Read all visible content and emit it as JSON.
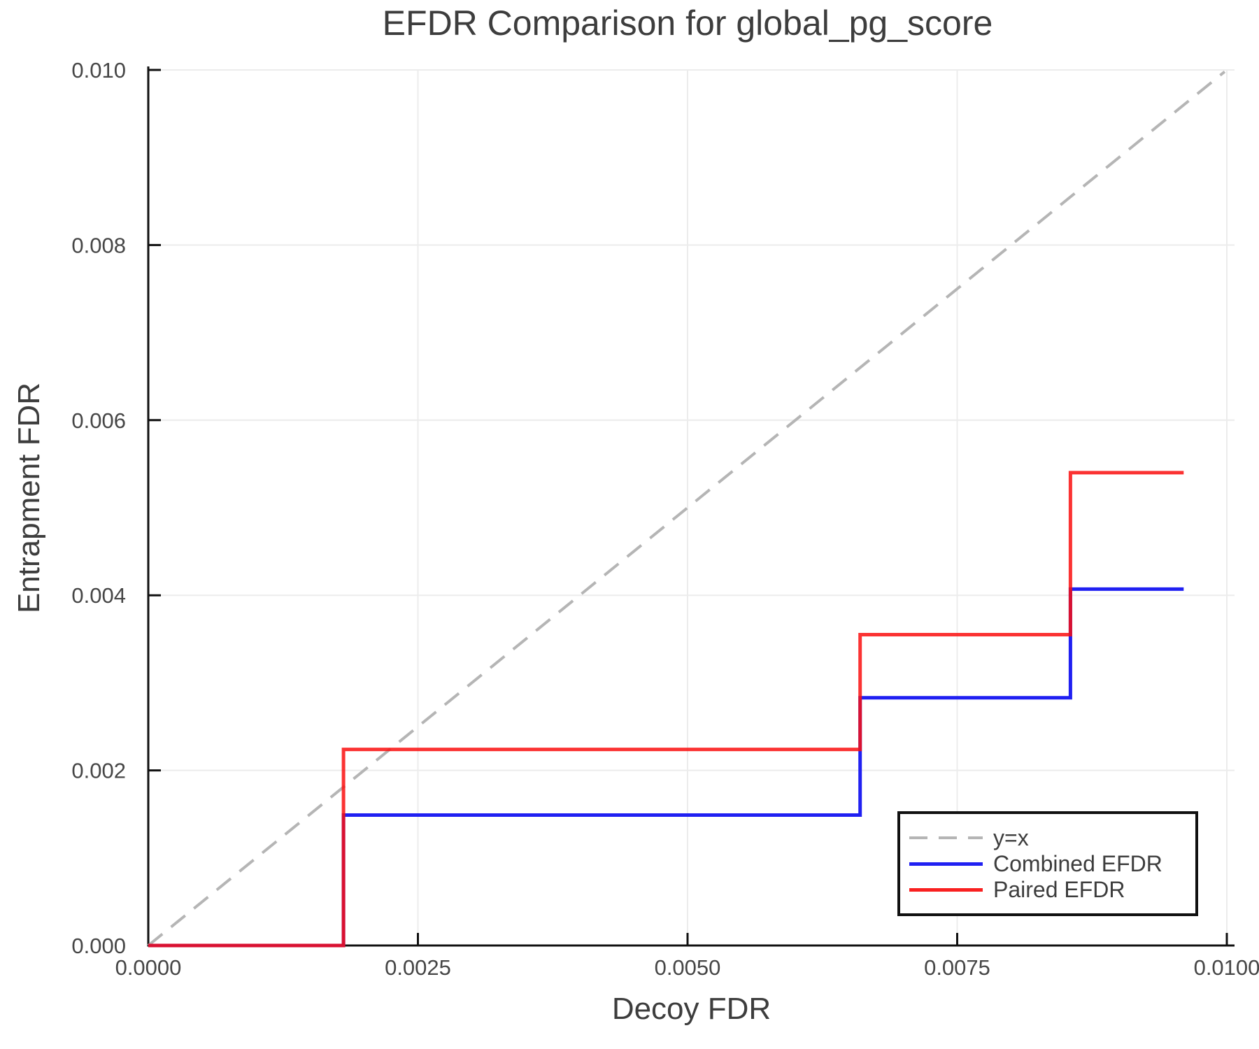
{
  "chart_data": {
    "type": "line",
    "title": "EFDR Comparison for global_pg_score",
    "xlabel": "Decoy FDR",
    "ylabel": "Entrapment FDR",
    "xlim": [
      0.0,
      0.01
    ],
    "ylim": [
      0.0,
      0.01
    ],
    "grid": true,
    "legend_position": "lower right",
    "x_ticks": [
      0.0,
      0.0025,
      0.005,
      0.0075,
      0.01
    ],
    "x_tick_labels": [
      "0.0000",
      "0.0025",
      "0.0050",
      "0.0075",
      "0.0100"
    ],
    "y_ticks": [
      0.0,
      0.002,
      0.004,
      0.006,
      0.008,
      0.01
    ],
    "y_tick_labels": [
      "0.000",
      "0.002",
      "0.004",
      "0.006",
      "0.008",
      "0.010"
    ],
    "series": [
      {
        "name": "y=x",
        "style": "dashed",
        "color": "#b5b5b5",
        "width": 4,
        "opacity": 1,
        "points": [
          [
            0.0,
            0.0
          ],
          [
            0.00998,
            0.00998
          ]
        ]
      },
      {
        "name": "Combined EFDR",
        "style": "solid",
        "color": "#2020f2",
        "width": 5,
        "opacity": 1,
        "points": [
          [
            0.0,
            0.0
          ],
          [
            0.00181,
            0.0
          ],
          [
            0.00181,
            0.00149
          ],
          [
            0.0066,
            0.00149
          ],
          [
            0.0066,
            0.00283
          ],
          [
            0.00855,
            0.00283
          ],
          [
            0.00855,
            0.00407
          ],
          [
            0.0096,
            0.00407
          ]
        ]
      },
      {
        "name": "Paired EFDR",
        "style": "solid",
        "color": "#fa0f0f",
        "width": 5,
        "opacity": 0.85,
        "points": [
          [
            0.0,
            0.0
          ],
          [
            0.00181,
            0.0
          ],
          [
            0.00181,
            0.00224
          ],
          [
            0.0066,
            0.00224
          ],
          [
            0.0066,
            0.00355
          ],
          [
            0.00855,
            0.00355
          ],
          [
            0.00855,
            0.0054
          ],
          [
            0.0096,
            0.0054
          ]
        ]
      }
    ]
  },
  "colors": {
    "grid": "#ececec",
    "axis": "#111111",
    "tick_label": "#464646",
    "text": "#3d3d3d"
  }
}
